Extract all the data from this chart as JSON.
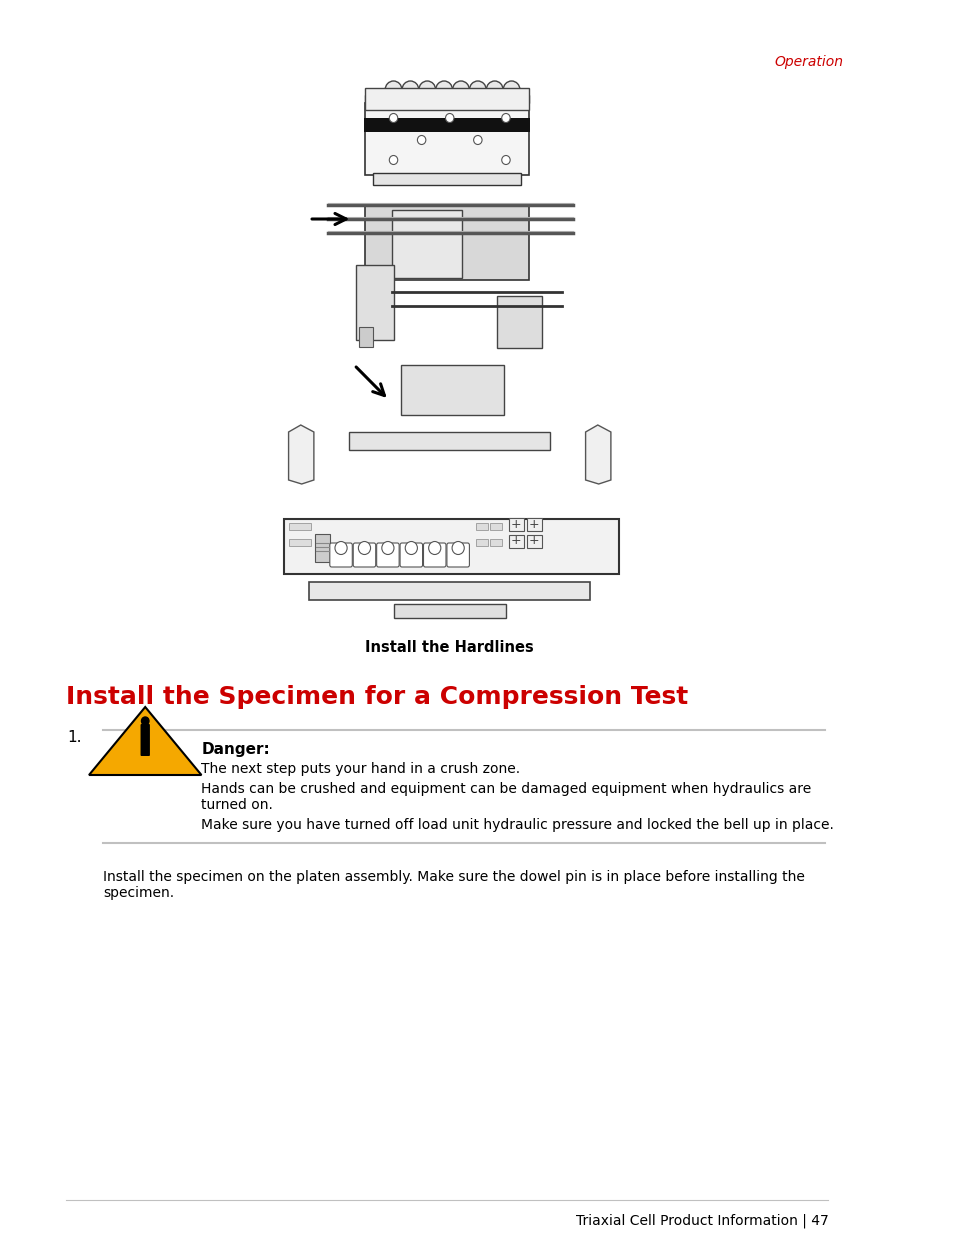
{
  "page_title": "Operation",
  "page_title_color": "#cc0000",
  "section_title": "Install the Specimen for a Compression Test",
  "section_title_color": "#cc0000",
  "figure_caption": "Install the Hardlines",
  "danger_title": "Danger:",
  "danger_line1": "The next step puts your hand in a crush zone.",
  "danger_line2": "Hands can be crushed and equipment can be damaged equipment when hydraulics are\nturned on.",
  "danger_line3": "Make sure you have turned off load unit hydraulic pressure and locked the bell up in place.",
  "step_number": "1.",
  "body_text": "Install the specimen on the platen assembly. Make sure the dowel pin is in place before installing the\nspecimen.",
  "footer_text": "Triaxial Cell Product Information | 47",
  "bg_color": "#ffffff",
  "text_color": "#000000",
  "line_color": "#cccccc",
  "triangle_fill": "#f5a800",
  "triangle_edge": "#000000"
}
